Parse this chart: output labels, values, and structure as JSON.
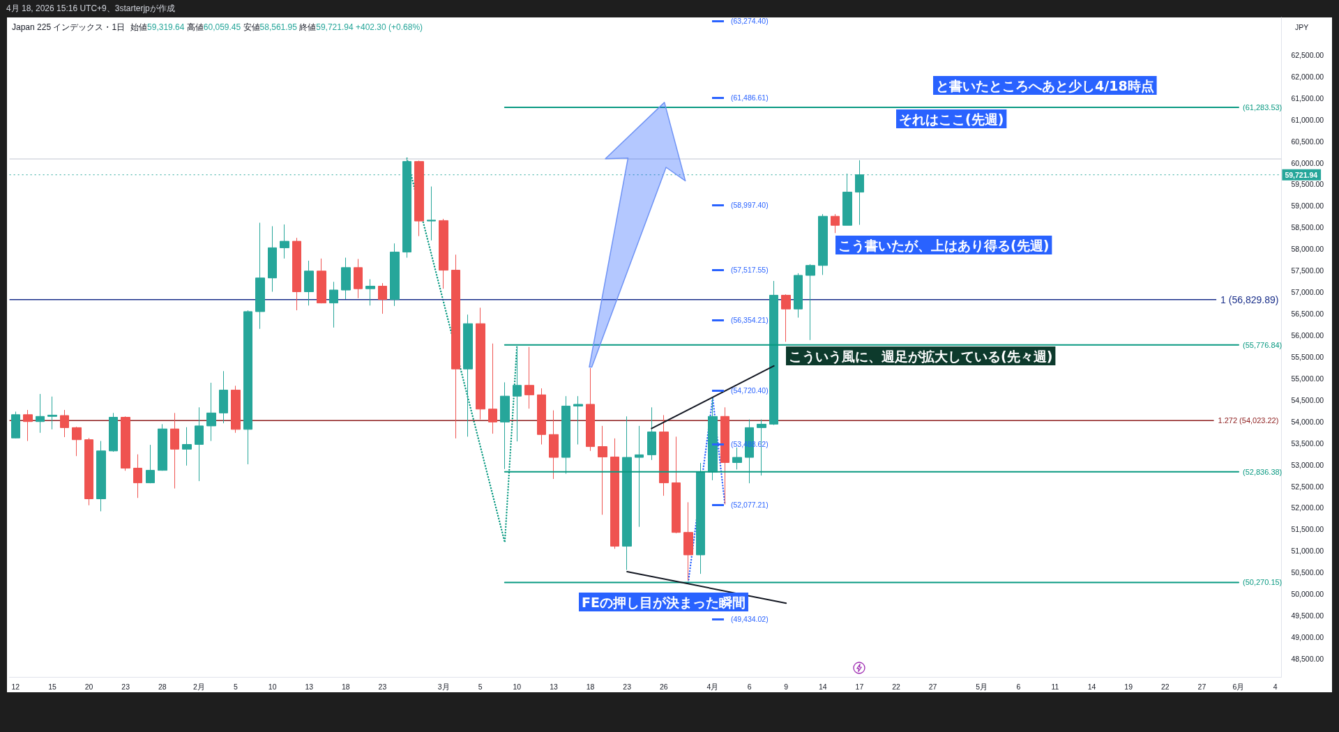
{
  "chart_data": {
    "type": "candlestick",
    "title": "Japan 225 インデックス・1日",
    "subtitle": "始値59,319.64 高値60,059.45 安値58,561.95 終値59,721.94 +402.30 (+0.68%)",
    "ylabel": "JPY",
    "categories": [
      "12",
      null,
      null,
      "15",
      null,
      null,
      "20",
      null,
      null,
      "23",
      null,
      null,
      "28",
      null,
      null,
      "2月",
      null,
      null,
      "5",
      null,
      null,
      "10",
      null,
      null,
      "13",
      null,
      null,
      "18",
      null,
      null,
      "23",
      null,
      null,
      null,
      null,
      "3月",
      null,
      null,
      "5",
      null,
      null,
      "10",
      null,
      null,
      "13",
      null,
      null,
      "18",
      null,
      null,
      "23",
      null,
      null,
      "26",
      null,
      null,
      null,
      "4月",
      null,
      null,
      "6",
      null,
      null,
      "9",
      null,
      null,
      "14",
      null,
      null,
      "17",
      null,
      null,
      "22",
      null,
      null,
      "27",
      null,
      null,
      null,
      "5月",
      null,
      null,
      "6",
      null,
      null,
      "11",
      null,
      null,
      "14",
      null,
      null,
      "19",
      null,
      null,
      "22",
      null,
      null,
      "27",
      null,
      null,
      "6月",
      null,
      null,
      "4"
    ],
    "ohlc": [
      [
        53620,
        54230,
        53610,
        54160
      ],
      [
        54160,
        54270,
        53550,
        54000
      ],
      [
        54000,
        54640,
        53740,
        54120
      ],
      [
        54120,
        54580,
        53820,
        54150
      ],
      [
        54140,
        54270,
        53640,
        53860
      ],
      [
        53860,
        53880,
        53200,
        53580
      ],
      [
        53580,
        53620,
        52060,
        52210
      ],
      [
        52210,
        53550,
        51920,
        53320
      ],
      [
        53320,
        54200,
        53300,
        54100
      ],
      [
        54100,
        54120,
        52860,
        52920
      ],
      [
        52920,
        53240,
        52230,
        52580
      ],
      [
        52580,
        53460,
        52570,
        52870
      ],
      [
        52870,
        53940,
        52860,
        53830
      ],
      [
        53830,
        54200,
        52450,
        53360
      ],
      [
        53360,
        53870,
        52980,
        53470
      ],
      [
        53470,
        54330,
        52620,
        53900
      ],
      [
        53900,
        54900,
        53550,
        54200
      ],
      [
        54200,
        55170,
        53960,
        54730
      ],
      [
        54730,
        54830,
        53740,
        53820
      ],
      [
        53820,
        56580,
        53010,
        56550
      ],
      [
        56550,
        58610,
        56150,
        57330
      ],
      [
        57330,
        58530,
        57010,
        58030
      ],
      [
        58030,
        58570,
        57780,
        58180
      ],
      [
        58180,
        58260,
        56580,
        57010
      ],
      [
        57010,
        57730,
        56690,
        57490
      ],
      [
        57490,
        57780,
        56740,
        56750
      ],
      [
        56750,
        57240,
        56180,
        57050
      ],
      [
        57050,
        57800,
        56840,
        57570
      ],
      [
        57570,
        57770,
        56860,
        57080
      ],
      [
        57080,
        57300,
        56690,
        57140
      ],
      [
        57140,
        57210,
        56500,
        56830
      ],
      [
        56830,
        58130,
        56680,
        57930
      ],
      [
        57930,
        60110,
        57800,
        60030
      ],
      [
        60030,
        60050,
        58300,
        58650
      ],
      [
        58650,
        59450,
        58200,
        58670
      ],
      [
        58660,
        58700,
        57080,
        57510
      ],
      [
        57510,
        57870,
        53610,
        55220
      ],
      [
        55220,
        56480,
        53650,
        56270
      ],
      [
        56270,
        56640,
        54050,
        54290
      ],
      [
        54290,
        55810,
        53720,
        53990
      ],
      [
        53990,
        54910,
        52900,
        54590
      ],
      [
        54590,
        55730,
        53540,
        54840
      ],
      [
        54840,
        55730,
        54300,
        54620
      ],
      [
        54620,
        54770,
        53470,
        53700
      ],
      [
        53700,
        54260,
        52670,
        53170
      ],
      [
        53170,
        54590,
        52790,
        54360
      ],
      [
        54360,
        54590,
        53470,
        54400
      ],
      [
        54400,
        55240,
        53320,
        53420
      ],
      [
        53420,
        53900,
        51840,
        53180
      ],
      [
        53180,
        53610,
        51050,
        51110
      ],
      [
        51110,
        54120,
        50560,
        53170
      ],
      [
        53170,
        53900,
        51560,
        53230
      ],
      [
        53230,
        54330,
        53110,
        53760
      ],
      [
        53760,
        54150,
        52280,
        52580
      ],
      [
        52580,
        53650,
        51410,
        51430
      ],
      [
        51430,
        52130,
        50310,
        50910
      ],
      [
        50910,
        53040,
        50470,
        52830
      ],
      [
        52830,
        54550,
        52640,
        54120
      ],
      [
        54120,
        54330,
        52080,
        53050
      ],
      [
        53050,
        53400,
        52890,
        53170
      ],
      [
        53170,
        54050,
        52570,
        53860
      ],
      [
        53860,
        54050,
        52750,
        53940
      ],
      [
        53940,
        57260,
        53920,
        56930
      ],
      [
        56930,
        56950,
        55850,
        56610
      ],
      [
        56610,
        57440,
        56410,
        57390
      ],
      [
        57390,
        57650,
        55890,
        57620
      ],
      [
        57620,
        58810,
        57400,
        58760
      ],
      [
        58760,
        58810,
        58370,
        58550
      ],
      [
        58550,
        59750,
        58550,
        59320
      ],
      [
        59319.64,
        60059.45,
        58561.95,
        59721.94
      ],
      null,
      null,
      null,
      null,
      null,
      null,
      null,
      null,
      null,
      null,
      null,
      null,
      null,
      null,
      null,
      null,
      null,
      null,
      null,
      null,
      null,
      null,
      null,
      null,
      null,
      null,
      null,
      null,
      null,
      null,
      null,
      null,
      null,
      null
    ],
    "colors": [
      "#26a69a",
      "#ef5350",
      "#26a69a",
      "#26a69a",
      "#ef5350",
      "#ef5350",
      "#ef5350",
      "#26a69a",
      "#26a69a",
      "#ef5350",
      "#ef5350",
      "#26a69a",
      "#26a69a",
      "#ef5350",
      "#26a69a",
      "#26a69a",
      "#26a69a",
      "#26a69a",
      "#ef5350",
      "#26a69a",
      "#26a69a",
      "#26a69a",
      "#26a69a",
      "#ef5350",
      "#26a69a",
      "#ef5350",
      "#26a69a",
      "#26a69a",
      "#ef5350",
      "#26a69a",
      "#ef5350",
      "#26a69a",
      "#26a69a",
      "#ef5350",
      "#26a69a",
      "#ef5350",
      "#ef5350",
      "#26a69a",
      "#ef5350",
      "#ef5350",
      "#26a69a",
      "#26a69a",
      "#ef5350",
      "#ef5350",
      "#ef5350",
      "#26a69a",
      "#26a69a",
      "#ef5350",
      "#ef5350",
      "#ef5350",
      "#26a69a",
      "#26a69a",
      "#26a69a",
      "#ef5350",
      "#ef5350",
      "#ef5350",
      "#26a69a",
      "#26a69a",
      "#ef5350",
      "#26a69a",
      "#26a69a",
      "#26a69a",
      "#26a69a",
      "#ef5350",
      "#26a69a",
      "#26a69a",
      "#26a69a",
      "#ef5350",
      "#26a69a",
      "#26a69a",
      null,
      null,
      null,
      null,
      null,
      null,
      null,
      null,
      null,
      null,
      null,
      null,
      null,
      null,
      null,
      null,
      null,
      null,
      null,
      null,
      null,
      null,
      null,
      null,
      null,
      null,
      null,
      null,
      null,
      null,
      null,
      null,
      null,
      null
    ],
    "series": [
      {
        "type": "line",
        "color": "#089981",
        "values": [
          null,
          null,
          null,
          null,
          null,
          null,
          null,
          null,
          null,
          null,
          null,
          null,
          null,
          null,
          null,
          null,
          null,
          null,
          null,
          null,
          null,
          null,
          null,
          null,
          null,
          null,
          null,
          null,
          null,
          null,
          null,
          null,
          null,
          null,
          null,
          null,
          null,
          null,
          null,
          null,
          61283.53,
          61283.53,
          61283.53,
          61283.53,
          61283.53,
          61283.53,
          61283.53,
          61283.53,
          61283.53,
          61283.53,
          61283.53,
          61283.53,
          61283.53,
          61283.53,
          61283.53,
          61283.53,
          61283.53,
          61283.53,
          61283.53,
          61283.53,
          61283.53,
          61283.53,
          61283.53,
          61283.53,
          61283.53,
          61283.53,
          61283.53,
          61283.53,
          61283.53,
          61283.53,
          61283.53,
          61283.53,
          61283.53,
          61283.53,
          61283.53,
          61283.53,
          61283.53,
          61283.53,
          61283.53,
          61283.53,
          61283.53,
          61283.53,
          61283.53,
          61283.53,
          61283.53,
          61283.53,
          61283.53,
          61283.53,
          61283.53,
          61283.53,
          61283.53,
          61283.53,
          61283.53,
          61283.53,
          61283.53,
          61283.53,
          61283.53,
          61283.53,
          61283.53,
          61283.53,
          61283.53,
          null,
          null,
          null
        ],
        "value_labels": [
          null,
          null,
          null,
          null,
          null,
          null,
          null,
          null,
          null,
          null,
          null,
          null,
          null,
          null,
          null,
          null,
          null,
          null,
          null,
          null,
          null,
          null,
          null,
          null,
          null,
          null,
          null,
          null,
          null,
          null,
          null,
          null,
          null,
          null,
          null,
          null,
          null,
          null,
          null,
          null,
          null,
          null,
          null,
          null,
          null,
          null,
          null,
          null,
          null,
          null,
          null,
          null,
          null,
          null,
          null,
          null,
          null,
          null,
          null,
          null,
          null,
          null,
          null,
          null,
          null,
          null,
          null,
          null,
          null,
          null,
          null,
          null,
          null,
          null,
          null,
          null,
          null,
          null,
          null,
          null,
          null,
          null,
          null,
          null,
          null,
          null,
          null,
          null,
          null,
          null,
          null,
          null,
          null,
          null,
          null,
          null,
          null,
          null,
          null,
          null,
          "(61,283.53)",
          null,
          null,
          null
        ]
      },
      {
        "type": "line",
        "color": "#089981",
        "values": [
          null,
          null,
          null,
          null,
          null,
          null,
          null,
          null,
          null,
          null,
          null,
          null,
          null,
          null,
          null,
          null,
          null,
          null,
          null,
          null,
          null,
          null,
          null,
          null,
          null,
          null,
          null,
          null,
          null,
          null,
          null,
          null,
          null,
          null,
          null,
          null,
          null,
          null,
          null,
          null,
          55776.84,
          55776.84,
          55776.84,
          55776.84,
          55776.84,
          55776.84,
          55776.84,
          55776.84,
          55776.84,
          55776.84,
          55776.84,
          55776.84,
          55776.84,
          55776.84,
          55776.84,
          55776.84,
          55776.84,
          55776.84,
          55776.84,
          55776.84,
          55776.84,
          55776.84,
          55776.84,
          55776.84,
          55776.84,
          55776.84,
          55776.84,
          55776.84,
          55776.84,
          55776.84,
          55776.84,
          55776.84,
          55776.84,
          55776.84,
          55776.84,
          55776.84,
          55776.84,
          55776.84,
          55776.84,
          55776.84,
          55776.84,
          55776.84,
          55776.84,
          55776.84,
          55776.84,
          55776.84,
          55776.84,
          55776.84,
          55776.84,
          55776.84,
          55776.84,
          55776.84,
          55776.84,
          55776.84,
          55776.84,
          55776.84,
          55776.84,
          55776.84,
          55776.84,
          55776.84,
          55776.84,
          null,
          null,
          null
        ],
        "value_labels": [
          null,
          null,
          null,
          null,
          null,
          null,
          null,
          null,
          null,
          null,
          null,
          null,
          null,
          null,
          null,
          null,
          null,
          null,
          null,
          null,
          null,
          null,
          null,
          null,
          null,
          null,
          null,
          null,
          null,
          null,
          null,
          null,
          null,
          null,
          null,
          null,
          null,
          null,
          null,
          null,
          null,
          null,
          null,
          null,
          null,
          null,
          null,
          null,
          null,
          null,
          null,
          null,
          null,
          null,
          null,
          null,
          null,
          null,
          null,
          null,
          null,
          null,
          null,
          null,
          null,
          null,
          null,
          null,
          null,
          null,
          null,
          null,
          null,
          null,
          null,
          null,
          null,
          null,
          null,
          null,
          null,
          null,
          null,
          null,
          null,
          null,
          null,
          null,
          null,
          null,
          null,
          null,
          null,
          null,
          null,
          null,
          null,
          null,
          null,
          null,
          "(55,776.84)",
          null,
          null,
          null
        ]
      },
      {
        "type": "line",
        "color": "#089981",
        "values": [
          null,
          null,
          null,
          null,
          null,
          null,
          null,
          null,
          null,
          null,
          null,
          null,
          null,
          null,
          null,
          null,
          null,
          null,
          null,
          null,
          null,
          null,
          null,
          null,
          null,
          null,
          null,
          null,
          null,
          null,
          null,
          null,
          null,
          null,
          null,
          null,
          null,
          null,
          null,
          null,
          52836.38,
          52836.38,
          52836.38,
          52836.38,
          52836.38,
          52836.38,
          52836.38,
          52836.38,
          52836.38,
          52836.38,
          52836.38,
          52836.38,
          52836.38,
          52836.38,
          52836.38,
          52836.38,
          52836.38,
          52836.38,
          52836.38,
          52836.38,
          52836.38,
          52836.38,
          52836.38,
          52836.38,
          52836.38,
          52836.38,
          52836.38,
          52836.38,
          52836.38,
          52836.38,
          52836.38,
          52836.38,
          52836.38,
          52836.38,
          52836.38,
          52836.38,
          52836.38,
          52836.38,
          52836.38,
          52836.38,
          52836.38,
          52836.38,
          52836.38,
          52836.38,
          52836.38,
          52836.38,
          52836.38,
          52836.38,
          52836.38,
          52836.38,
          52836.38,
          52836.38,
          52836.38,
          52836.38,
          52836.38,
          52836.38,
          52836.38,
          52836.38,
          52836.38,
          52836.38,
          52836.38,
          null,
          null,
          null
        ],
        "value_labels": [
          null,
          null,
          null,
          null,
          null,
          null,
          null,
          null,
          null,
          null,
          null,
          null,
          null,
          null,
          null,
          null,
          null,
          null,
          null,
          null,
          null,
          null,
          null,
          null,
          null,
          null,
          null,
          null,
          null,
          null,
          null,
          null,
          null,
          null,
          null,
          null,
          null,
          null,
          null,
          null,
          null,
          null,
          null,
          null,
          null,
          null,
          null,
          null,
          null,
          null,
          null,
          null,
          null,
          null,
          null,
          null,
          null,
          null,
          null,
          null,
          null,
          null,
          null,
          null,
          null,
          null,
          null,
          null,
          null,
          null,
          null,
          null,
          null,
          null,
          null,
          null,
          null,
          null,
          null,
          null,
          null,
          null,
          null,
          null,
          null,
          null,
          null,
          null,
          null,
          null,
          null,
          null,
          null,
          null,
          null,
          null,
          null,
          null,
          null,
          null,
          "(52,836.38)",
          null,
          null,
          null
        ]
      },
      {
        "type": "line",
        "color": "#089981",
        "values": [
          null,
          null,
          null,
          null,
          null,
          null,
          null,
          null,
          null,
          null,
          null,
          null,
          null,
          null,
          null,
          null,
          null,
          null,
          null,
          null,
          null,
          null,
          null,
          null,
          null,
          null,
          null,
          null,
          null,
          null,
          null,
          null,
          null,
          null,
          null,
          null,
          null,
          null,
          null,
          null,
          50270.15,
          50270.15,
          50270.15,
          50270.15,
          50270.15,
          50270.15,
          50270.15,
          50270.15,
          50270.15,
          50270.15,
          50270.15,
          50270.15,
          50270.15,
          50270.15,
          50270.15,
          50270.15,
          50270.15,
          50270.15,
          50270.15,
          50270.15,
          50270.15,
          50270.15,
          50270.15,
          50270.15,
          50270.15,
          50270.15,
          50270.15,
          50270.15,
          50270.15,
          50270.15,
          50270.15,
          50270.15,
          50270.15,
          50270.15,
          50270.15,
          50270.15,
          50270.15,
          50270.15,
          50270.15,
          50270.15,
          50270.15,
          50270.15,
          50270.15,
          50270.15,
          50270.15,
          50270.15,
          50270.15,
          50270.15,
          50270.15,
          50270.15,
          50270.15,
          50270.15,
          50270.15,
          50270.15,
          50270.15,
          50270.15,
          50270.15,
          50270.15,
          50270.15,
          50270.15,
          50270.15,
          null,
          null,
          null
        ],
        "value_labels": [
          null,
          null,
          null,
          null,
          null,
          null,
          null,
          null,
          null,
          null,
          null,
          null,
          null,
          null,
          null,
          null,
          null,
          null,
          null,
          null,
          null,
          null,
          null,
          null,
          null,
          null,
          null,
          null,
          null,
          null,
          null,
          null,
          null,
          null,
          null,
          null,
          null,
          null,
          null,
          null,
          null,
          null,
          null,
          null,
          null,
          null,
          null,
          null,
          null,
          null,
          null,
          null,
          null,
          null,
          null,
          null,
          null,
          null,
          null,
          null,
          null,
          null,
          null,
          null,
          null,
          null,
          null,
          null,
          null,
          null,
          null,
          null,
          null,
          null,
          null,
          null,
          null,
          null,
          null,
          null,
          null,
          null,
          null,
          null,
          null,
          null,
          null,
          null,
          null,
          null,
          null,
          null,
          null,
          null,
          null,
          null,
          null,
          null,
          null,
          null,
          "(50,270.15)",
          null,
          null,
          null
        ]
      },
      {
        "type": "line",
        "color": "#089981",
        "line_style": "dotted",
        "values": [
          null,
          null,
          null,
          null,
          null,
          null,
          null,
          null,
          null,
          null,
          null,
          null,
          null,
          null,
          null,
          null,
          null,
          null,
          null,
          null,
          null,
          null,
          null,
          null,
          null,
          null,
          null,
          null,
          null,
          null,
          null,
          null,
          60100,
          null,
          null,
          null,
          null,
          null,
          null,
          null,
          51200,
          55780,
          null,
          null,
          null,
          null,
          null,
          null,
          null,
          null,
          null,
          null,
          null,
          null,
          null,
          null,
          null,
          null,
          null,
          null,
          null,
          null,
          null,
          null,
          null,
          null,
          null,
          null,
          null,
          null,
          null,
          null,
          null,
          null,
          null,
          null,
          null,
          null,
          null,
          null,
          null,
          null,
          null,
          null,
          null,
          null,
          null,
          null,
          null,
          null,
          null,
          null,
          null,
          null,
          null,
          null,
          null,
          null,
          null,
          null,
          null,
          null,
          null,
          null
        ]
      },
      {
        "type": "line",
        "color": "#2962ff",
        "line_style": "dotted",
        "values": [
          null,
          null,
          null,
          null,
          null,
          null,
          null,
          null,
          null,
          null,
          null,
          null,
          null,
          null,
          null,
          null,
          null,
          null,
          null,
          null,
          null,
          null,
          null,
          null,
          null,
          null,
          null,
          null,
          null,
          null,
          null,
          null,
          null,
          null,
          null,
          null,
          null,
          null,
          null,
          null,
          null,
          null,
          null,
          null,
          null,
          null,
          null,
          null,
          null,
          null,
          null,
          null,
          null,
          null,
          null,
          50270,
          null,
          54550,
          52080,
          null,
          null,
          null,
          null,
          null,
          null,
          null,
          null,
          null,
          null,
          null,
          null,
          null,
          null,
          null,
          null,
          null,
          null,
          null,
          null,
          null,
          null,
          null,
          null,
          null,
          null,
          null,
          null,
          null,
          null,
          null,
          null,
          null,
          null,
          null,
          null,
          null,
          null,
          null,
          null,
          null,
          null,
          null,
          null,
          null
        ]
      },
      {
        "type": "line",
        "color": "#131722",
        "values": [
          null,
          null,
          null,
          null,
          null,
          null,
          null,
          null,
          null,
          null,
          null,
          null,
          null,
          null,
          null,
          null,
          null,
          null,
          null,
          null,
          null,
          null,
          null,
          null,
          null,
          null,
          null,
          null,
          null,
          null,
          null,
          null,
          null,
          null,
          null,
          null,
          null,
          null,
          null,
          null,
          null,
          null,
          null,
          null,
          null,
          null,
          null,
          null,
          null,
          null,
          null,
          null,
          53840,
          null,
          null,
          null,
          null,
          null,
          null,
          null,
          null,
          null,
          55290,
          null,
          null,
          null,
          null,
          null,
          null,
          null,
          null,
          null,
          null,
          null,
          null,
          null,
          null,
          null,
          null,
          null,
          null,
          null,
          null,
          null,
          null,
          null,
          null,
          null,
          null,
          null,
          null,
          null,
          null,
          null,
          null,
          null,
          null,
          null,
          null,
          null,
          null,
          null,
          null,
          null
        ]
      },
      {
        "type": "line",
        "color": "#131722",
        "values": [
          null,
          null,
          null,
          null,
          null,
          null,
          null,
          null,
          null,
          null,
          null,
          null,
          null,
          null,
          null,
          null,
          null,
          null,
          null,
          null,
          null,
          null,
          null,
          null,
          null,
          null,
          null,
          null,
          null,
          null,
          null,
          null,
          null,
          null,
          null,
          null,
          null,
          null,
          null,
          null,
          null,
          null,
          null,
          null,
          null,
          null,
          null,
          null,
          null,
          null,
          50520,
          null,
          null,
          null,
          null,
          null,
          null,
          null,
          null,
          null,
          null,
          null,
          null,
          49790,
          null,
          null,
          null,
          null,
          null,
          null,
          null,
          null,
          null,
          null,
          null,
          null,
          null,
          null,
          null,
          null,
          null,
          null,
          null,
          null,
          null,
          null,
          null,
          null,
          null,
          null,
          null,
          null,
          null,
          null,
          null,
          null,
          null,
          null,
          null,
          null,
          null,
          null,
          null,
          null
        ]
      }
    ],
    "ylim": [
      48080,
      63370
    ],
    "yticks": [
      {
        "value": 48500,
        "label": "48,500.00"
      },
      {
        "value": 49000,
        "label": "49,000.00"
      },
      {
        "value": 49500,
        "label": "49,500.00"
      },
      {
        "value": 50000,
        "label": "50,000.00"
      },
      {
        "value": 50500,
        "label": "50,500.00"
      },
      {
        "value": 51000,
        "label": "51,000.00"
      },
      {
        "value": 51500,
        "label": "51,500.00"
      },
      {
        "value": 52000,
        "label": "52,000.00"
      },
      {
        "value": 52500,
        "label": "52,500.00"
      },
      {
        "value": 53000,
        "label": "53,000.00"
      },
      {
        "value": 53500,
        "label": "53,500.00"
      },
      {
        "value": 54000,
        "label": "54,000.00"
      },
      {
        "value": 54500,
        "label": "54,500.00"
      },
      {
        "value": 55000,
        "label": "55,000.00"
      },
      {
        "value": 55500,
        "label": "55,500.00"
      },
      {
        "value": 56000,
        "label": "56,000.00"
      },
      {
        "value": 56500,
        "label": "56,500.00"
      },
      {
        "value": 57000,
        "label": "57,000.00"
      },
      {
        "value": 57500,
        "label": "57,500.00"
      },
      {
        "value": 58000,
        "label": "58,000.00"
      },
      {
        "value": 58500,
        "label": "58,500.00"
      },
      {
        "value": 59000,
        "label": "59,000.00"
      },
      {
        "value": 59500,
        "label": "59,500.00"
      },
      {
        "value": 60000,
        "label": "60,000.00"
      },
      {
        "value": 60500,
        "label": "60,500.00"
      },
      {
        "value": 61000,
        "label": "61,000.00"
      },
      {
        "value": 61500,
        "label": "61,500.00"
      },
      {
        "value": 62000,
        "label": "62,000.00"
      },
      {
        "value": 62500,
        "label": "62,500.00"
      }
    ],
    "ref_lines": [
      {
        "axis": "y",
        "value": 56829.89,
        "label": "1 (56,829.89)",
        "color": "#1a2f8a"
      },
      {
        "axis": "y",
        "value": 54023.22,
        "label": "1.272 (54,023.22)",
        "color": "#8b1a1a"
      },
      {
        "axis": "y",
        "value": 59721.94,
        "label": "59,721.94",
        "color": "#26a69a",
        "line_style": "dotted"
      },
      {
        "axis": "y",
        "value": 60090,
        "color": "#d6d9e0"
      }
    ],
    "annotations": [
      "4月 18, 2026 15:16 UTC+9、3starterjpが作成",
      "と書いたところへあと少し4/18時点",
      "それはここ(先週)",
      "こう書いたが、上はあり得る(先週)",
      "こういう風に、週足が拡大している(先々週)",
      "FEの押し目が決まった瞬間",
      "(63,274.40)",
      "(61,486.61)",
      "(58,997.40)",
      "(57,517.55)",
      "(56,354.21)",
      "(54,720.40)",
      "(53,488.62)",
      "(52,077.21)",
      "(49,434.02)"
    ]
  }
}
